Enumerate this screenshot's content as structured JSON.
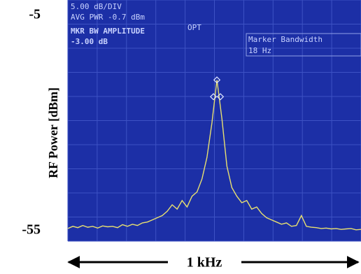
{
  "chart_data": {
    "type": "line",
    "ylabel": "RF Power [dBm]",
    "xlabel": "1 kHz",
    "ylim": [
      -55,
      -5
    ],
    "yticks": [
      -5,
      -55
    ],
    "color": "#e8e070",
    "annotations": [
      "5.00 dB/DIV",
      "AVG PWR -0.7 dBm",
      "OPT",
      "MKR BW AMPLITUDE",
      "-3.00 dB",
      "Marker Bandwidth",
      "18 Hz"
    ],
    "categories": [
      null,
      null,
      null,
      null,
      null,
      null,
      null,
      null,
      null,
      null,
      null,
      null,
      null,
      null,
      null,
      null,
      null,
      null,
      null,
      null,
      null,
      null,
      null,
      null,
      null,
      null,
      null,
      null,
      null,
      null,
      null,
      null,
      null,
      null,
      null,
      null,
      null,
      null,
      null,
      null,
      null,
      null,
      null,
      null,
      null,
      null,
      null,
      null,
      null,
      null,
      null,
      null,
      null,
      null,
      null,
      null,
      null,
      null,
      null,
      null
    ],
    "values": [
      -54.5,
      -54,
      -54.3,
      -53.8,
      -54.2,
      -54,
      -54.4,
      -53.9,
      -54.1,
      -54,
      -54.3,
      -53.6,
      -54,
      -53.5,
      -53.8,
      -53.2,
      -53,
      -52.5,
      -52,
      -51.5,
      -50.5,
      -49,
      -50,
      -48,
      -49.5,
      -47,
      -46,
      -43,
      -38,
      -30,
      -20,
      -29,
      -40,
      -45,
      -47,
      -48.5,
      -48,
      -50,
      -49.5,
      -51,
      -52,
      -52.5,
      -53,
      -53.5,
      -53.2,
      -54,
      -53.8,
      -51.5,
      -54,
      -54.2,
      -54.3,
      -54.5,
      -54.4,
      -54.6,
      -54.5,
      -54.7,
      -54.6,
      -54.5,
      -54.8,
      -54.7
    ]
  }
}
